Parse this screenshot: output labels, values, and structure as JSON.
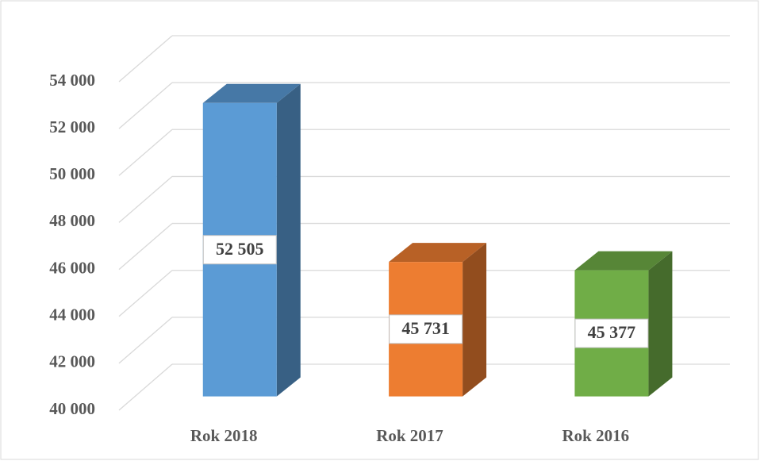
{
  "chart_data": {
    "type": "bar3d",
    "categories": [
      "Rok 2018",
      "Rok 2017",
      "Rok 2016"
    ],
    "values": [
      52505,
      45731,
      45377
    ],
    "value_labels": [
      "52 505",
      "45 731",
      "45 377"
    ],
    "colors": [
      "#5b9bd5",
      "#ed7d31",
      "#70ad47"
    ],
    "ylim": [
      40000,
      54000
    ],
    "yticks": [
      {
        "value": 40000,
        "label": "40 000"
      },
      {
        "value": 42000,
        "label": "42 000"
      },
      {
        "value": 44000,
        "label": "44 000"
      },
      {
        "value": 46000,
        "label": "46 000"
      },
      {
        "value": 48000,
        "label": "48 000"
      },
      {
        "value": 50000,
        "label": "50 000"
      },
      {
        "value": 52000,
        "label": "52 000"
      },
      {
        "value": 54000,
        "label": "54 000"
      }
    ],
    "grid": true
  }
}
